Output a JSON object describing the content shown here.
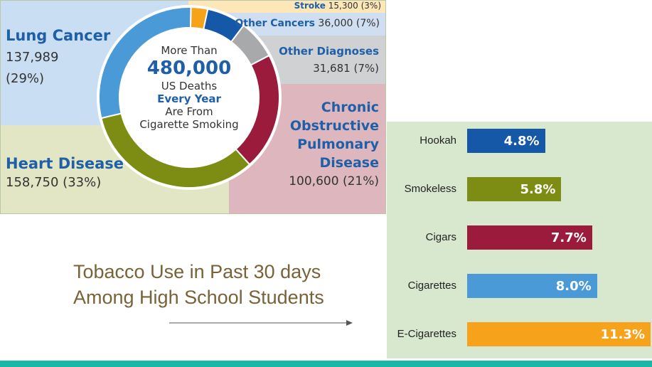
{
  "chart_data": [
    {
      "type": "pie",
      "center_text": {
        "line1": "More Than",
        "line2": "480,000",
        "line3": "US Deaths",
        "line4": "Every Year",
        "line5": "Are From",
        "line6": "Cigarette Smoking"
      },
      "slices": [
        {
          "name": "Lung Cancer",
          "value": "137,989",
          "pct": "(29%)",
          "share": 29,
          "color": "#4a9ad8"
        },
        {
          "name": "Stroke",
          "value": "15,300",
          "pct": "(3%)",
          "share": 3,
          "color": "#f7a21b"
        },
        {
          "name": "Other Cancers",
          "value": "36,000",
          "pct": "(7%)",
          "share": 7,
          "color": "#1558a8"
        },
        {
          "name": "Other Diagnoses",
          "value": "31,681",
          "pct": "(7%)",
          "share": 7,
          "color": "#a7a9ab"
        },
        {
          "name": "Chronic Obstructive Pulmonary Disease",
          "value": "100,600",
          "pct": "(21%)",
          "share": 21,
          "color": "#9b1b3c"
        },
        {
          "name": "Heart Disease",
          "value": "158,750",
          "pct": "(33%)",
          "share": 33,
          "color": "#7d8c12"
        }
      ],
      "region_colors": {
        "lung": "#c9def2",
        "stroke": "#fde6b8",
        "other_cancers": "#cfdff1",
        "other_diagnoses": "#cfd1d3",
        "copd": "#ddb7bd",
        "heart": "#e2e6c4"
      }
    },
    {
      "type": "bar",
      "orientation": "horizontal",
      "title": "Tobacco Use in Past 30 days Among High School Students",
      "categories": [
        "Hookah",
        "Smokeless",
        "Cigars",
        "Cigarettes",
        "E-Cigarettes"
      ],
      "values": [
        4.8,
        5.8,
        7.7,
        8.0,
        11.3
      ],
      "value_labels": [
        "4.8%",
        "5.8%",
        "7.7%",
        "8.0%",
        "11.3%"
      ],
      "colors": [
        "#1558a8",
        "#7d8c12",
        "#9b1b3c",
        "#4a9ad8",
        "#f7a21b"
      ],
      "xlim": [
        0,
        11.3
      ]
    }
  ]
}
